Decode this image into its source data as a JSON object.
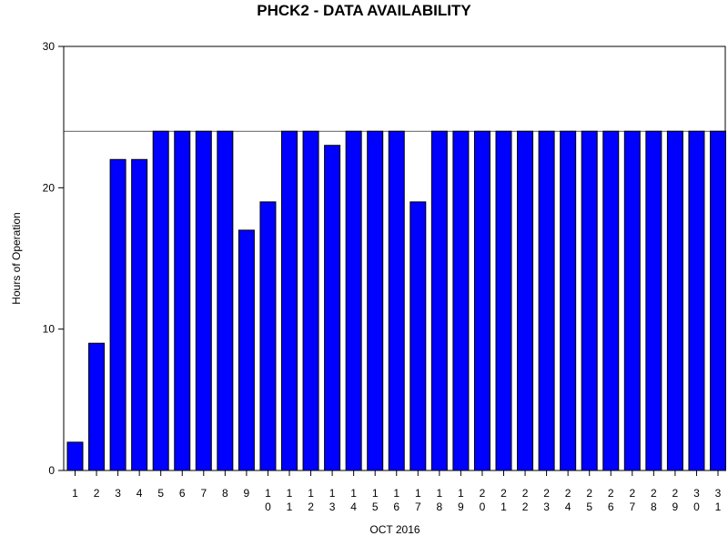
{
  "chart_data": {
    "type": "bar",
    "title": "PHCK2 - DATA AVAILABILITY",
    "xlabel": "OCT 2016",
    "ylabel": "Hours of Operation",
    "categories": [
      "1",
      "2",
      "3",
      "4",
      "5",
      "6",
      "7",
      "8",
      "9",
      "10",
      "11",
      "12",
      "13",
      "14",
      "15",
      "16",
      "17",
      "18",
      "19",
      "20",
      "21",
      "22",
      "23",
      "24",
      "25",
      "26",
      "27",
      "28",
      "29",
      "30",
      "31"
    ],
    "values": [
      2,
      9,
      22,
      22,
      24,
      24,
      24,
      24,
      17,
      19,
      24,
      24,
      23,
      24,
      24,
      24,
      19,
      24,
      24,
      24,
      24,
      24,
      24,
      24,
      24,
      24,
      24,
      24,
      24,
      24,
      24
    ],
    "ylim": [
      0,
      30
    ],
    "yticks": [
      "0",
      "10",
      "20",
      "30"
    ],
    "reference_line": 24,
    "bar_color": "#0000ff",
    "grid": false
  }
}
